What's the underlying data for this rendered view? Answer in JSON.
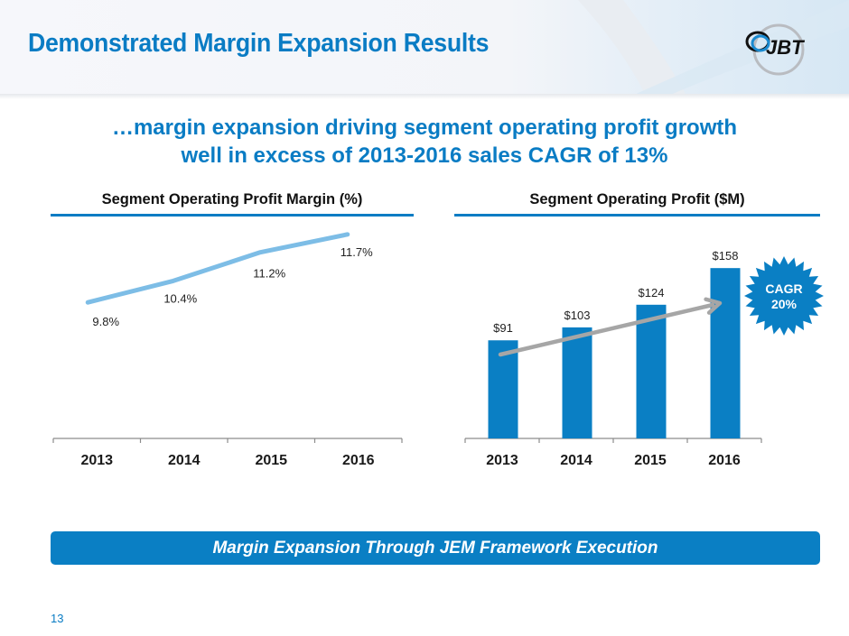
{
  "header": {
    "title": "Demonstrated Margin Expansion Results",
    "logo_text": "JBT",
    "logo_icon": "jbt-logo-icon"
  },
  "subtitle": {
    "line1": "…margin expansion driving segment operating profit growth",
    "line2": "well in excess of 2013-2016 sales CAGR of 13%"
  },
  "colors": {
    "brand_blue": "#0a7cc4",
    "line_series": "#7dbde6",
    "bar_series": "#0a7fc4",
    "trend_arrow": "#a6a6a6",
    "axis": "#8c8c8c"
  },
  "chart_data": [
    {
      "type": "line",
      "title": "Segment Operating Profit Margin  (%)",
      "categories": [
        "2013",
        "2014",
        "2015",
        "2016"
      ],
      "series": [
        {
          "name": "Segment Operating Profit Margin",
          "values": [
            9.8,
            10.4,
            11.2,
            11.7
          ]
        }
      ],
      "data_labels": [
        "9.8%",
        "10.4%",
        "11.2%",
        "11.7%"
      ],
      "xlabel": "",
      "ylabel": "",
      "ylim": [
        6.0,
        12.2
      ],
      "grid": false,
      "legend": "none"
    },
    {
      "type": "bar",
      "title": "Segment Operating Profit ($M)",
      "categories": [
        "2013",
        "2014",
        "2015",
        "2016"
      ],
      "values": [
        91,
        103,
        124,
        158
      ],
      "data_labels": [
        "$91",
        "$103",
        "$124",
        "$158"
      ],
      "xlabel": "",
      "ylabel": "",
      "ylim": [
        0,
        164
      ],
      "grid": false,
      "legend": "none",
      "annotations": [
        {
          "type": "trend-arrow",
          "from": "2013",
          "to": "2016"
        },
        {
          "type": "starburst",
          "text_line1": "CAGR",
          "text_line2": "20%"
        }
      ]
    }
  ],
  "banner": {
    "text": "Margin Expansion Through JEM Framework Execution"
  },
  "footer": {
    "page_number": "13"
  }
}
